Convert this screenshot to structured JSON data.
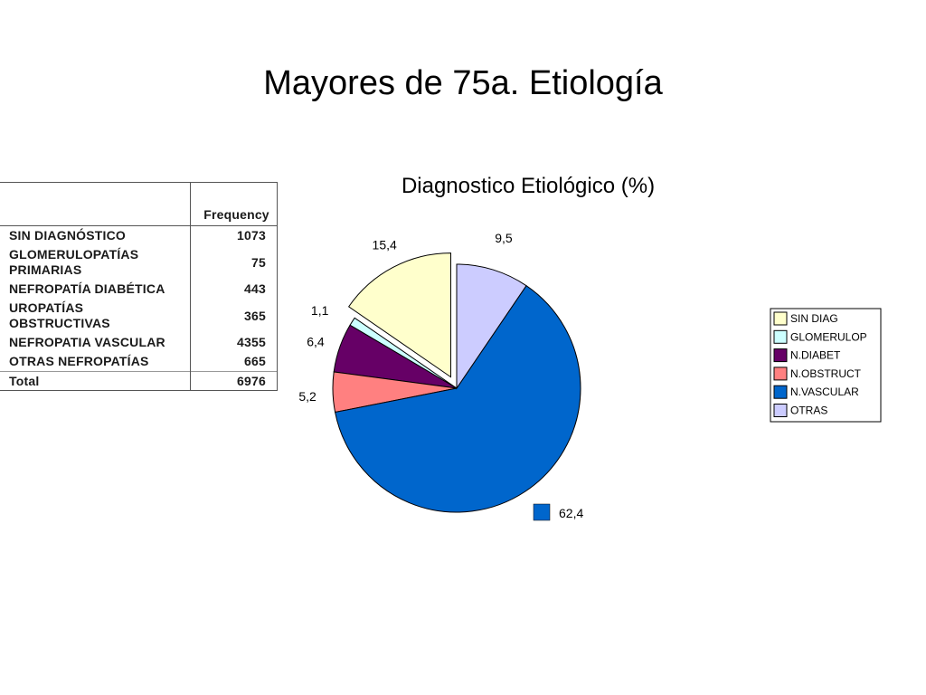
{
  "slide": {
    "title": "Mayores de 75a. Etiología"
  },
  "table": {
    "header": "Frequency",
    "rows": [
      {
        "label": "SIN DIAGNÓSTICO",
        "value": "1073"
      },
      {
        "label": "GLOMERULOPATÍAS PRIMARIAS",
        "value": "75"
      },
      {
        "label": "NEFROPATÍA DIABÉTICA",
        "value": "443"
      },
      {
        "label": "UROPATÍAS OBSTRUCTIVAS",
        "value": "365"
      },
      {
        "label": "NEFROPATIA VASCULAR",
        "value": "4355"
      },
      {
        "label": "OTRAS NEFROPATÍAS",
        "value": "665"
      }
    ],
    "total": {
      "label": "Total",
      "value": "6976"
    }
  },
  "chart_data": {
    "type": "pie",
    "title": "Diagnostico Etiológico  (%)",
    "slices": [
      {
        "name": "SIN DIAG",
        "value": 15.4,
        "label": "15,4",
        "color": "#FFFFCC",
        "exploded": true
      },
      {
        "name": "GLOMERULOP",
        "value": 1.1,
        "label": "1,1",
        "color": "#CCFFFF",
        "exploded": false
      },
      {
        "name": "N.DIABET",
        "value": 6.4,
        "label": "6,4",
        "color": "#660066",
        "exploded": false
      },
      {
        "name": "N.OBSTRUCT",
        "value": 5.2,
        "label": "5,2",
        "color": "#FF8080",
        "exploded": false
      },
      {
        "name": "N.VASCULAR",
        "value": 62.4,
        "label": "62,4",
        "color": "#0066CC",
        "exploded": false
      },
      {
        "name": "OTRAS",
        "value": 9.5,
        "label": "9,5",
        "color": "#CCCCFF",
        "exploded": false
      }
    ],
    "legend_position": "right",
    "direction": "counterclockwise",
    "start": "top"
  }
}
